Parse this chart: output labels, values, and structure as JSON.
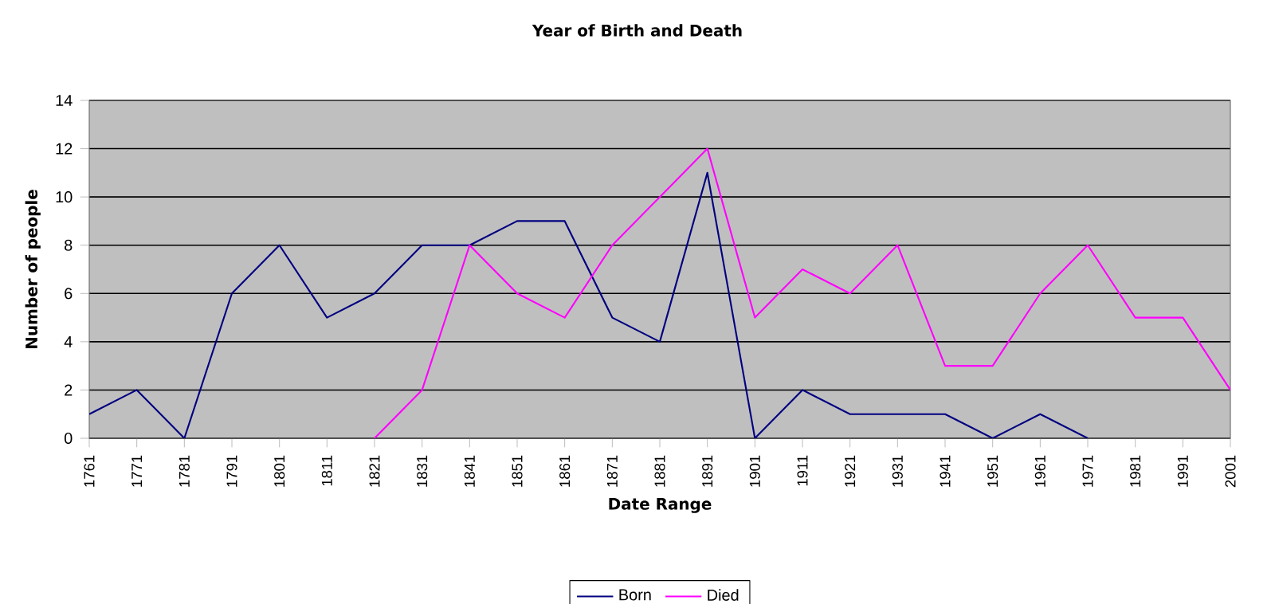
{
  "chart_data": {
    "type": "line",
    "title": "Year of Birth and Death",
    "xlabel": "Date Range",
    "ylabel": "Number of people",
    "categories": [
      "1761",
      "1771",
      "1781",
      "1791",
      "1801",
      "1811",
      "1821",
      "1831",
      "1841",
      "1851",
      "1861",
      "1871",
      "1881",
      "1891",
      "1901",
      "1911",
      "1921",
      "1931",
      "1941",
      "1951",
      "1961",
      "1971",
      "1981",
      "1991",
      "2001"
    ],
    "series": [
      {
        "name": "Born",
        "color": "#000080",
        "values": [
          1,
          2,
          0,
          6,
          8,
          5,
          6,
          8,
          8,
          9,
          9,
          5,
          4,
          11,
          0,
          2,
          1,
          1,
          1,
          0,
          1,
          0,
          null,
          null,
          null
        ]
      },
      {
        "name": "Died",
        "color": "#ff00ff",
        "values": [
          null,
          null,
          null,
          null,
          null,
          null,
          0,
          2,
          8,
          6,
          5,
          8,
          10,
          12,
          5,
          7,
          6,
          8,
          3,
          3,
          6,
          8,
          5,
          5,
          2
        ]
      }
    ],
    "ylim": [
      0,
      14
    ],
    "yticks": [
      0,
      2,
      4,
      6,
      8,
      10,
      12,
      14
    ],
    "grid": "y",
    "legend": "bottom",
    "marker": "none",
    "line_style": "solid"
  }
}
